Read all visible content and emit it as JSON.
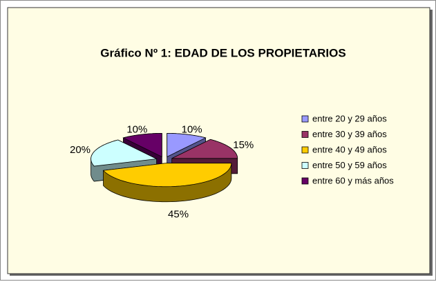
{
  "chart_data": {
    "type": "pie",
    "title": "Gráfico Nº 1: EDAD DE LOS PROPIETARIOS",
    "categories": [
      "entre 20 y 29 años",
      "entre 30 y 39 años",
      "entre 40 y 49 años",
      "entre 50 y 59 años",
      "entre 60 y más años"
    ],
    "values": [
      10,
      15,
      45,
      20,
      10
    ],
    "value_labels": [
      "10%",
      "15%",
      "45%",
      "20%",
      "10%"
    ],
    "colors": [
      "#9999ff",
      "#993366",
      "#ffcc00",
      "#ccffff",
      "#660066"
    ],
    "legend": "right"
  }
}
